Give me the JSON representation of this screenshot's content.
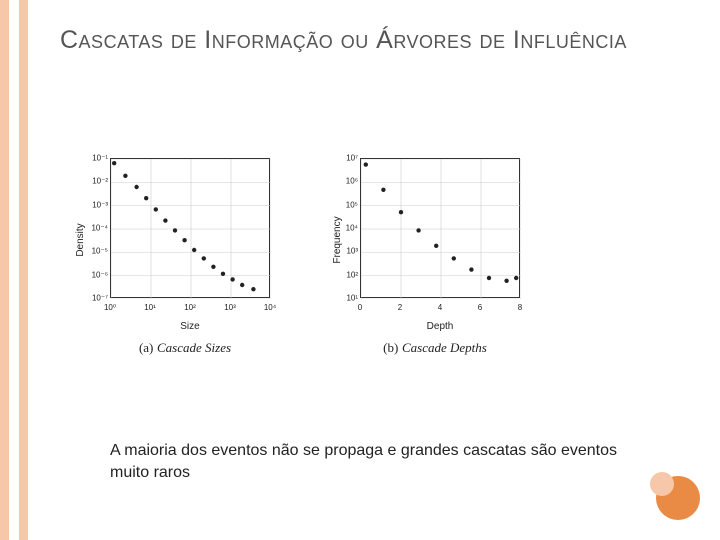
{
  "title": "Cascatas de Informação ou Árvores de Influência",
  "body_text": "A maioria dos eventos não se propaga e grandes cascatas são eventos muito raros",
  "stripe_colors": {
    "outer": "#f6c7a8",
    "inner": "#ffffff"
  },
  "circles": {
    "big": "#e98b45",
    "small": "#f6c7a8"
  },
  "chart_a": {
    "type": "scatter",
    "scale": "log-log",
    "xlabel": "Size",
    "ylabel": "Density",
    "caption_label": "(a)",
    "caption_text": "Cascade Sizes",
    "xticks": [
      {
        "p": 0,
        "l": "10⁰"
      },
      {
        "p": 0.25,
        "l": "10¹"
      },
      {
        "p": 0.5,
        "l": "10²"
      },
      {
        "p": 0.75,
        "l": "10³"
      },
      {
        "p": 1,
        "l": "10⁴"
      }
    ],
    "yticks": [
      {
        "p": 0,
        "l": "10⁻⁷"
      },
      {
        "p": 0.167,
        "l": "10⁻⁶"
      },
      {
        "p": 0.333,
        "l": "10⁻⁵"
      },
      {
        "p": 0.5,
        "l": "10⁻⁴"
      },
      {
        "p": 0.667,
        "l": "10⁻³"
      },
      {
        "p": 0.833,
        "l": "10⁻²"
      },
      {
        "p": 1,
        "l": "10⁻¹"
      }
    ],
    "grid_color": "#cccccc",
    "point_color": "#222222",
    "points": [
      {
        "x": 0.02,
        "y": 0.97
      },
      {
        "x": 0.09,
        "y": 0.88
      },
      {
        "x": 0.16,
        "y": 0.8
      },
      {
        "x": 0.22,
        "y": 0.72
      },
      {
        "x": 0.28,
        "y": 0.64
      },
      {
        "x": 0.34,
        "y": 0.56
      },
      {
        "x": 0.4,
        "y": 0.49
      },
      {
        "x": 0.46,
        "y": 0.42
      },
      {
        "x": 0.52,
        "y": 0.35
      },
      {
        "x": 0.58,
        "y": 0.29
      },
      {
        "x": 0.64,
        "y": 0.23
      },
      {
        "x": 0.7,
        "y": 0.18
      },
      {
        "x": 0.76,
        "y": 0.14
      },
      {
        "x": 0.82,
        "y": 0.1
      },
      {
        "x": 0.89,
        "y": 0.07
      }
    ]
  },
  "chart_b": {
    "type": "scatter",
    "scale": "linear-log",
    "xlabel": "Depth",
    "ylabel": "Frequency",
    "caption_label": "(b)",
    "caption_text": "Cascade Depths",
    "xticks": [
      {
        "p": 0,
        "l": "0"
      },
      {
        "p": 0.25,
        "l": "2"
      },
      {
        "p": 0.5,
        "l": "4"
      },
      {
        "p": 0.75,
        "l": "6"
      },
      {
        "p": 1,
        "l": "8"
      }
    ],
    "yticks": [
      {
        "p": 0,
        "l": "10¹"
      },
      {
        "p": 0.167,
        "l": "10²"
      },
      {
        "p": 0.333,
        "l": "10³"
      },
      {
        "p": 0.5,
        "l": "10⁴"
      },
      {
        "p": 0.667,
        "l": "10⁵"
      },
      {
        "p": 0.833,
        "l": "10⁶"
      },
      {
        "p": 1,
        "l": "10⁷"
      }
    ],
    "grid_color": "#cccccc",
    "point_color": "#222222",
    "points": [
      {
        "x": 0.03,
        "y": 0.96
      },
      {
        "x": 0.14,
        "y": 0.78
      },
      {
        "x": 0.25,
        "y": 0.62
      },
      {
        "x": 0.36,
        "y": 0.49
      },
      {
        "x": 0.47,
        "y": 0.38
      },
      {
        "x": 0.58,
        "y": 0.29
      },
      {
        "x": 0.69,
        "y": 0.21
      },
      {
        "x": 0.8,
        "y": 0.15
      },
      {
        "x": 0.91,
        "y": 0.13
      },
      {
        "x": 0.97,
        "y": 0.15
      }
    ]
  }
}
